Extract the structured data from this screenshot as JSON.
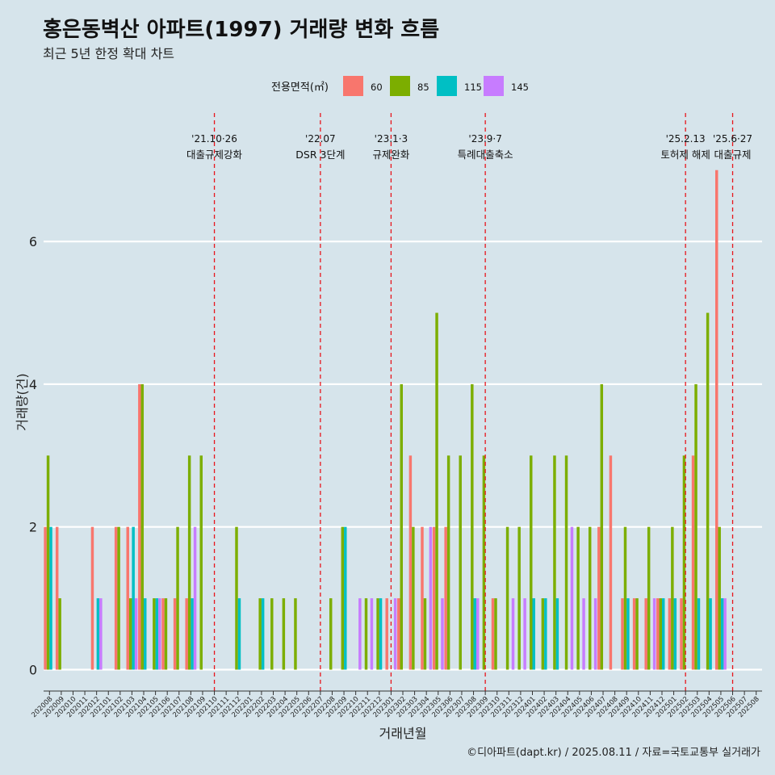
{
  "header": {
    "title": "홍은동벽산 아파트(1997) 거래량 변화 흐름",
    "subtitle": "최근 5년 한정 확대 차트"
  },
  "caption": "©디아파트(dapt.kr) / 2025.08.11 / 자료=국토교통부 실거래가",
  "chart_data": {
    "type": "bar",
    "title": "홍은동벽산 아파트(1997) 거래량 변화 흐름",
    "subtitle": "최근 5년 한정 확대 차트",
    "xlabel": "거래년월",
    "ylabel": "거래량(건)",
    "ylim": [
      -0.3,
      7.8
    ],
    "yticks": [
      0,
      2,
      4,
      6
    ],
    "grid": true,
    "legend": {
      "title": "전용면적(㎡)",
      "position": "top",
      "entries": [
        {
          "name": "60",
          "color": "#F8766D"
        },
        {
          "name": "85",
          "color": "#7CAE00"
        },
        {
          "name": "115",
          "color": "#00BFC4"
        },
        {
          "name": "145",
          "color": "#C77CFF"
        }
      ]
    },
    "categories": [
      "202008",
      "202009",
      "202010",
      "202011",
      "202012",
      "202101",
      "202102",
      "202103",
      "202104",
      "202105",
      "202106",
      "202107",
      "202108",
      "202109",
      "202110",
      "202111",
      "202112",
      "202201",
      "202202",
      "202203",
      "202204",
      "202205",
      "202206",
      "202207",
      "202208",
      "202209",
      "202210",
      "202211",
      "202212",
      "202301",
      "202302",
      "202303",
      "202304",
      "202305",
      "202306",
      "202307",
      "202308",
      "202309",
      "202310",
      "202311",
      "202312",
      "202401",
      "202402",
      "202403",
      "202404",
      "202405",
      "202406",
      "202407",
      "202408",
      "202409",
      "202410",
      "202411",
      "202412",
      "202501",
      "202502",
      "202503",
      "202504",
      "202505",
      "202506",
      "202507",
      "202508"
    ],
    "series": [
      {
        "name": "60",
        "values": [
          2,
          2,
          0,
          0,
          2,
          0,
          2,
          2,
          4,
          0,
          1,
          1,
          1,
          0,
          0,
          0,
          0,
          0,
          0,
          0,
          0,
          0,
          0,
          0,
          0,
          0,
          0,
          0,
          0,
          1,
          1,
          3,
          2,
          2,
          2,
          0,
          0,
          0,
          1,
          0,
          0,
          0,
          0,
          0,
          0,
          0,
          0,
          2,
          3,
          1,
          1,
          1,
          1,
          1,
          1,
          3,
          0,
          7,
          0,
          0,
          0
        ]
      },
      {
        "name": "85",
        "values": [
          3,
          1,
          0,
          0,
          0,
          0,
          2,
          1,
          4,
          1,
          1,
          2,
          3,
          3,
          0,
          0,
          2,
          0,
          1,
          1,
          1,
          1,
          0,
          0,
          1,
          2,
          0,
          1,
          1,
          0,
          4,
          2,
          1,
          5,
          3,
          3,
          4,
          3,
          1,
          2,
          2,
          3,
          1,
          3,
          3,
          2,
          2,
          4,
          0,
          2,
          1,
          2,
          1,
          2,
          3,
          4,
          5,
          2,
          0,
          0,
          0
        ]
      },
      {
        "name": "115",
        "values": [
          2,
          0,
          0,
          0,
          1,
          0,
          0,
          2,
          1,
          1,
          0,
          0,
          1,
          0,
          0,
          0,
          1,
          0,
          1,
          0,
          0,
          0,
          0,
          0,
          0,
          2,
          0,
          0,
          1,
          0,
          0,
          0,
          0,
          0,
          0,
          0,
          1,
          0,
          0,
          0,
          0,
          1,
          1,
          1,
          0,
          0,
          0,
          0,
          0,
          1,
          0,
          0,
          1,
          1,
          0,
          1,
          1,
          1,
          0,
          0,
          0
        ]
      },
      {
        "name": "145",
        "values": [
          0,
          0,
          0,
          0,
          1,
          0,
          0,
          1,
          0,
          1,
          0,
          0,
          2,
          0,
          0,
          0,
          0,
          0,
          0,
          0,
          0,
          0,
          0,
          0,
          0,
          0,
          1,
          1,
          0,
          1,
          0,
          0,
          2,
          1,
          0,
          0,
          1,
          0,
          0,
          1,
          1,
          0,
          0,
          0,
          2,
          1,
          1,
          0,
          0,
          0,
          0,
          1,
          0,
          0,
          0,
          0,
          0,
          1,
          0,
          0,
          0
        ]
      }
    ],
    "annotations": [
      {
        "category": "202110",
        "date": "'21.10·26",
        "label": "대출규제강화"
      },
      {
        "category": "202207",
        "date": "'22.07",
        "label": "DSR 3단계"
      },
      {
        "category": "202301",
        "date": "'23.1·3",
        "label": "규제완화"
      },
      {
        "category": "202309",
        "date": "'23.9·7",
        "label": "특례대출축소"
      },
      {
        "category": "202502",
        "date": "'25.2.13",
        "label": "토허제 해제"
      },
      {
        "category": "202506",
        "date": "'25.6·27",
        "label": "대출규제"
      }
    ]
  }
}
